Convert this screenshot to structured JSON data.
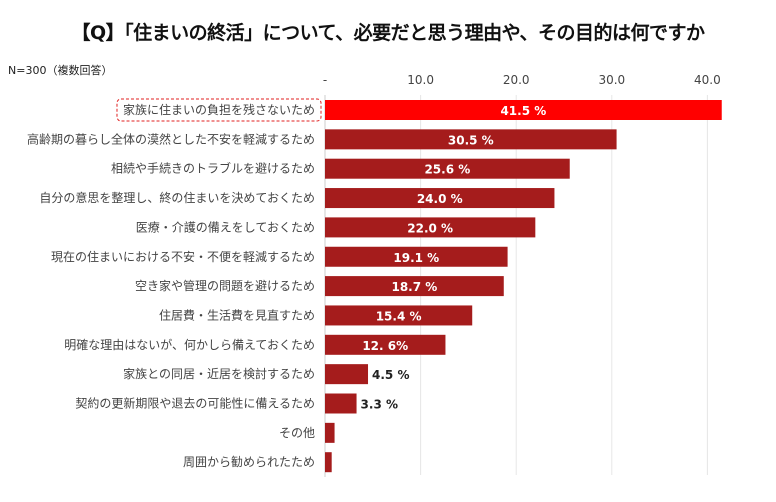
{
  "chart_data": {
    "type": "bar",
    "orientation": "horizontal",
    "title": "【Q】「住まいの終活」について、必要だと思う理由や、その目的は何ですか",
    "note": "N=300（複数回答）",
    "xlim": [
      0,
      42
    ],
    "ticks": [
      "-",
      "10.0",
      "20.0",
      "30.0",
      "40.0"
    ],
    "tick_values": [
      0,
      10,
      20,
      30,
      40
    ],
    "categories": [
      "家族に住まいの負担を残さないため",
      "高齢期の暮らし全体の漠然とした不安を軽減するため",
      "相続や手続きのトラブルを避けるため",
      "自分の意思を整理し、終の住まいを決めておくため",
      "医療・介護の備えをしておくため",
      "現在の住まいにおける不安・不便を軽減するため",
      "空き家や管理の問題を避けるため",
      "住居費・生活費を見直すため",
      "明確な理由はないが、何かしら備えておくため",
      "家族との同居・近居を検討するため",
      "契約の更新期限や退去の可能性に備えるため",
      "その他",
      "周囲から勧められたため"
    ],
    "values": [
      41.5,
      30.5,
      25.6,
      24.0,
      22.0,
      19.1,
      18.7,
      15.4,
      12.6,
      4.5,
      3.3,
      1.0,
      0.7
    ],
    "data_labels": [
      "41.5 %",
      "30.5 %",
      "25.6 %",
      "24.0 %",
      "22.0 %",
      "19.1 %",
      "18.7 %",
      "15.4 %",
      "12. 6%",
      "4.5 %",
      "3.3 %",
      "",
      ""
    ],
    "colors": {
      "highlight": "#ff0000",
      "bar": "#a51c1c"
    },
    "highlight_index": 0,
    "grid": true
  }
}
